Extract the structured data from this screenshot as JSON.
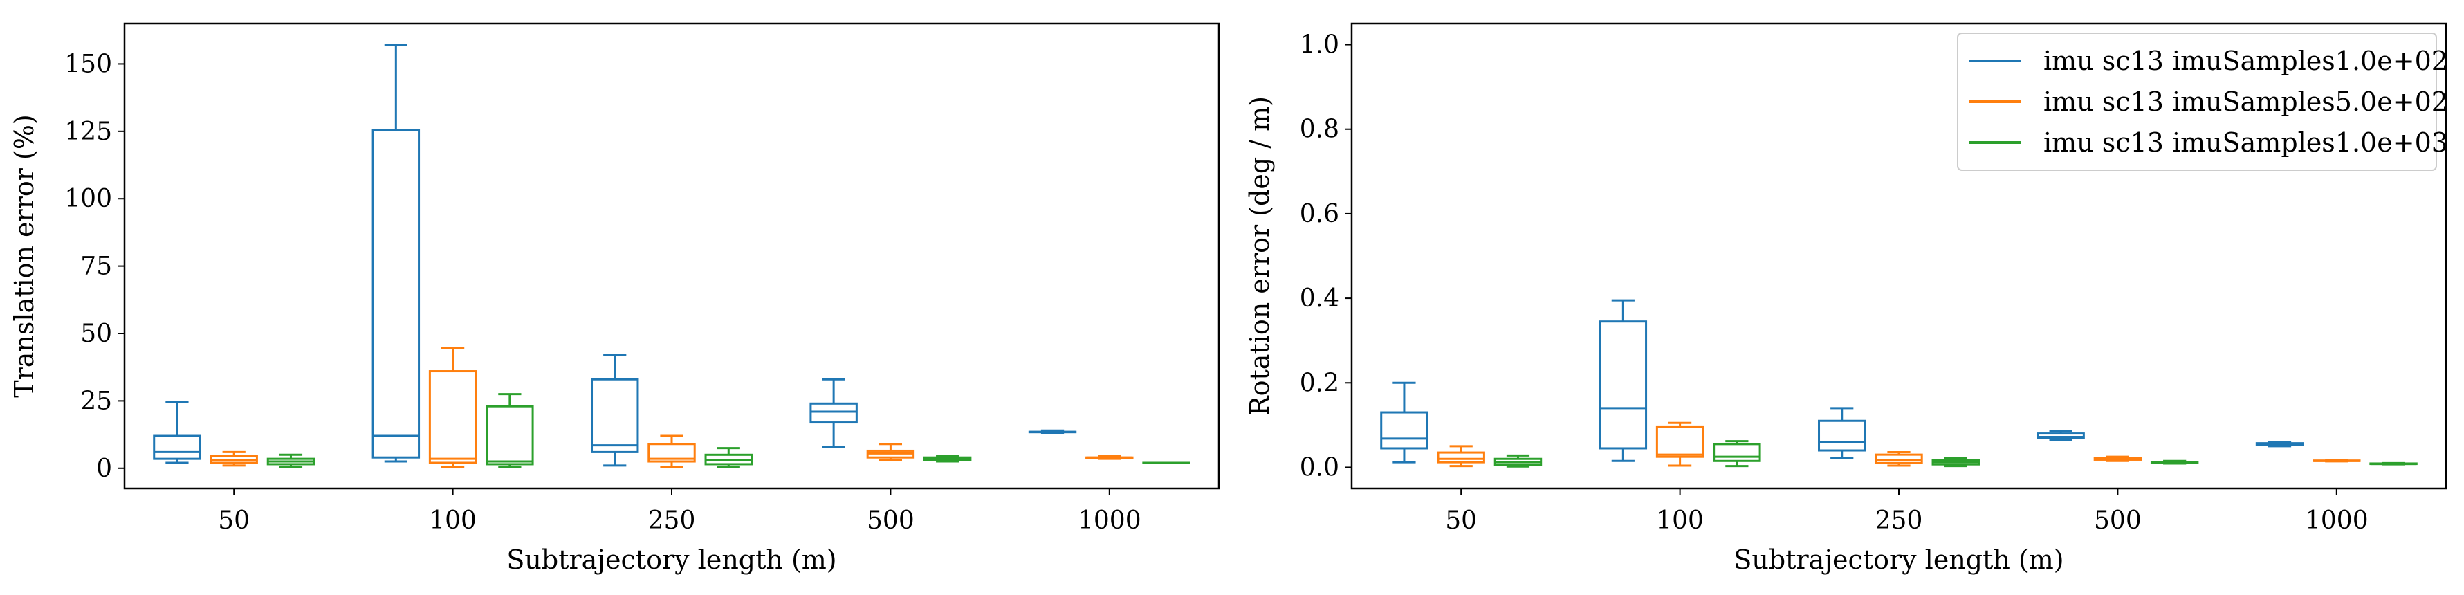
{
  "figure": {
    "legend": {
      "placement": "top-right of right panel",
      "entries": [
        {
          "label": "imu sc13 imuSamples1.0e+02",
          "color": "#1f77b4"
        },
        {
          "label": "imu sc13 imuSamples5.0e+02",
          "color": "#ff7f0e"
        },
        {
          "label": "imu sc13 imuSamples1.0e+03",
          "color": "#2ca02c"
        }
      ]
    }
  },
  "chart_data": [
    {
      "type": "box",
      "xlabel": "Subtrajectory length (m)",
      "ylabel": "Translation error  (%)",
      "categories": [
        "50",
        "100",
        "250",
        "500",
        "1000"
      ],
      "ylim": [
        -7.5,
        165
      ],
      "yticks": [
        0,
        25,
        50,
        75,
        100,
        125,
        150
      ],
      "ytick_labels": [
        "0",
        "25",
        "50",
        "75",
        "100",
        "125",
        "150"
      ],
      "grid": false,
      "series": [
        {
          "name": "imu sc13 imuSamples1.0e+02",
          "color": "#1f77b4",
          "boxes": [
            {
              "whislo": 2,
              "q1": 3.5,
              "med": 6,
              "q3": 12,
              "whishi": 24.5
            },
            {
              "whislo": 2.5,
              "q1": 4,
              "med": 12,
              "q3": 125.5,
              "whishi": 157
            },
            {
              "whislo": 1,
              "q1": 6,
              "med": 8.5,
              "q3": 33,
              "whishi": 42
            },
            {
              "whislo": 8,
              "q1": 17,
              "med": 21,
              "q3": 24,
              "whishi": 33
            },
            {
              "whislo": 13,
              "q1": 13.5,
              "med": 13.5,
              "q3": 13.5,
              "whishi": 14
            }
          ]
        },
        {
          "name": "imu sc13 imuSamples5.0e+02",
          "color": "#ff7f0e",
          "boxes": [
            {
              "whislo": 1,
              "q1": 2,
              "med": 3,
              "q3": 4.5,
              "whishi": 6
            },
            {
              "whislo": 0.5,
              "q1": 2,
              "med": 3.5,
              "q3": 36,
              "whishi": 44.5
            },
            {
              "whislo": 0.5,
              "q1": 2.5,
              "med": 3.5,
              "q3": 9,
              "whishi": 12
            },
            {
              "whislo": 3,
              "q1": 4,
              "med": 5.5,
              "q3": 6.5,
              "whishi": 9
            },
            {
              "whislo": 3.5,
              "q1": 4,
              "med": 4,
              "q3": 4,
              "whishi": 4.5
            }
          ]
        },
        {
          "name": "imu sc13 imuSamples1.0e+03",
          "color": "#2ca02c",
          "boxes": [
            {
              "whislo": 0.5,
              "q1": 1.5,
              "med": 2.5,
              "q3": 3.5,
              "whishi": 5
            },
            {
              "whislo": 0.5,
              "q1": 1.5,
              "med": 2.5,
              "q3": 23,
              "whishi": 27.5
            },
            {
              "whislo": 0.5,
              "q1": 1.5,
              "med": 3,
              "q3": 5,
              "whishi": 7.5
            },
            {
              "whislo": 2.5,
              "q1": 3,
              "med": 3.5,
              "q3": 4,
              "whishi": 4.5
            },
            {
              "whislo": 2,
              "q1": 2,
              "med": 2,
              "q3": 2,
              "whishi": 2
            }
          ]
        }
      ]
    },
    {
      "type": "box",
      "xlabel": "Subtrajectory length (m)",
      "ylabel": "Rotation error  (deg / m)",
      "categories": [
        "50",
        "100",
        "250",
        "500",
        "1000"
      ],
      "ylim": [
        -0.05,
        1.05
      ],
      "yticks": [
        0.0,
        0.2,
        0.4,
        0.6,
        0.8,
        1.0
      ],
      "ytick_labels": [
        "0.0",
        "0.2",
        "0.4",
        "0.6",
        "0.8",
        "1.0"
      ],
      "grid": false,
      "series": [
        {
          "name": "imu sc13 imuSamples1.0e+02",
          "color": "#1f77b4",
          "boxes": [
            {
              "whislo": 0.012,
              "q1": 0.045,
              "med": 0.068,
              "q3": 0.13,
              "whishi": 0.2
            },
            {
              "whislo": 0.015,
              "q1": 0.045,
              "med": 0.14,
              "q3": 0.345,
              "whishi": 0.395
            },
            {
              "whislo": 0.022,
              "q1": 0.04,
              "med": 0.06,
              "q3": 0.11,
              "whishi": 0.14
            },
            {
              "whislo": 0.065,
              "q1": 0.07,
              "med": 0.072,
              "q3": 0.08,
              "whishi": 0.085
            },
            {
              "whislo": 0.05,
              "q1": 0.053,
              "med": 0.055,
              "q3": 0.057,
              "whishi": 0.06
            }
          ]
        },
        {
          "name": "imu sc13 imuSamples5.0e+02",
          "color": "#ff7f0e",
          "boxes": [
            {
              "whislo": 0.003,
              "q1": 0.012,
              "med": 0.02,
              "q3": 0.035,
              "whishi": 0.05
            },
            {
              "whislo": 0.004,
              "q1": 0.025,
              "med": 0.03,
              "q3": 0.095,
              "whishi": 0.105
            },
            {
              "whislo": 0.004,
              "q1": 0.01,
              "med": 0.018,
              "q3": 0.03,
              "whishi": 0.036
            },
            {
              "whislo": 0.015,
              "q1": 0.018,
              "med": 0.02,
              "q3": 0.022,
              "whishi": 0.025
            },
            {
              "whislo": 0.014,
              "q1": 0.015,
              "med": 0.015,
              "q3": 0.016,
              "whishi": 0.017
            }
          ]
        },
        {
          "name": "imu sc13 imuSamples1.0e+03",
          "color": "#2ca02c",
          "boxes": [
            {
              "whislo": 0.002,
              "q1": 0.005,
              "med": 0.012,
              "q3": 0.02,
              "whishi": 0.028
            },
            {
              "whislo": 0.003,
              "q1": 0.015,
              "med": 0.025,
              "q3": 0.055,
              "whishi": 0.062
            },
            {
              "whislo": 0.003,
              "q1": 0.007,
              "med": 0.012,
              "q3": 0.017,
              "whishi": 0.022
            },
            {
              "whislo": 0.009,
              "q1": 0.01,
              "med": 0.011,
              "q3": 0.013,
              "whishi": 0.015
            },
            {
              "whislo": 0.007,
              "q1": 0.008,
              "med": 0.008,
              "q3": 0.009,
              "whishi": 0.01
            }
          ]
        }
      ]
    }
  ]
}
